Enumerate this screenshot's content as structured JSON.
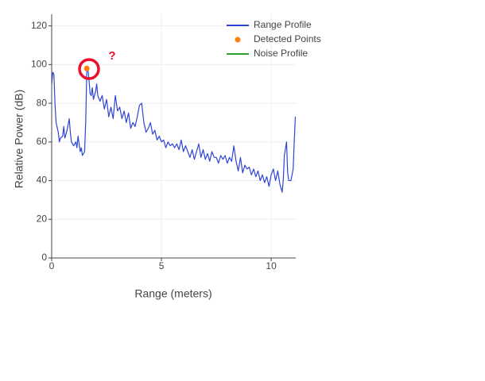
{
  "chart_data": {
    "type": "line",
    "x_label": "Range (meters)",
    "y_label": "Relative Power (dB)",
    "annotation": "?",
    "xlim": [
      0,
      11.12
    ],
    "ylim": [
      0,
      126
    ],
    "xticks": [
      0,
      5,
      10
    ],
    "yticks": [
      0,
      20,
      40,
      60,
      80,
      100,
      120
    ],
    "grid": true,
    "series": [
      {
        "name": "Range Profile",
        "color": "#2f45d6",
        "mode": "line",
        "x": [
          0,
          0.05,
          0.1,
          0.15,
          0.2,
          0.3,
          0.35,
          0.4,
          0.5,
          0.55,
          0.6,
          0.7,
          0.8,
          0.85,
          0.9,
          1.0,
          1.1,
          1.15,
          1.2,
          1.3,
          1.35,
          1.4,
          1.5,
          1.55,
          1.6,
          1.65,
          1.7,
          1.75,
          1.8,
          1.85,
          1.9,
          2.0,
          2.05,
          2.1,
          2.2,
          2.3,
          2.4,
          2.5,
          2.6,
          2.7,
          2.8,
          2.9,
          3.0,
          3.1,
          3.2,
          3.3,
          3.4,
          3.5,
          3.6,
          3.7,
          3.8,
          3.9,
          4.0,
          4.1,
          4.2,
          4.3,
          4.4,
          4.5,
          4.6,
          4.7,
          4.8,
          4.9,
          5.0,
          5.1,
          5.2,
          5.3,
          5.4,
          5.5,
          5.6,
          5.7,
          5.8,
          5.9,
          6.0,
          6.1,
          6.2,
          6.3,
          6.4,
          6.5,
          6.6,
          6.7,
          6.8,
          6.9,
          7.0,
          7.1,
          7.2,
          7.3,
          7.4,
          7.5,
          7.6,
          7.7,
          7.8,
          7.9,
          8.0,
          8.1,
          8.2,
          8.3,
          8.4,
          8.5,
          8.6,
          8.7,
          8.8,
          8.9,
          9.0,
          9.1,
          9.2,
          9.3,
          9.4,
          9.5,
          9.6,
          9.7,
          9.8,
          9.9,
          10.0,
          10.1,
          10.2,
          10.3,
          10.4,
          10.5,
          10.55,
          10.6,
          10.7,
          10.75,
          10.8,
          10.9,
          11.0,
          11.05,
          11.1
        ],
        "values": [
          90,
          96,
          95,
          80,
          70,
          65,
          60,
          62,
          63,
          68,
          62,
          66,
          72,
          65,
          60,
          58,
          60,
          57,
          63,
          55,
          57,
          53,
          55,
          70,
          97,
          98,
          92,
          85,
          84,
          88,
          82,
          86,
          90,
          84,
          81,
          84,
          77,
          82,
          73,
          78,
          72,
          84,
          76,
          78,
          72,
          76,
          70,
          75,
          67,
          70,
          68,
          73,
          79,
          80,
          70,
          65,
          67,
          70,
          64,
          66,
          61,
          63,
          60,
          61,
          57,
          60,
          58,
          59,
          57,
          59,
          56,
          61,
          55,
          58,
          55,
          52,
          56,
          51,
          55,
          59,
          52,
          56,
          51,
          54,
          50,
          55,
          52,
          52,
          49,
          53,
          51,
          53,
          49,
          52,
          50,
          58,
          50,
          45,
          52,
          44,
          48,
          46,
          47,
          43,
          46,
          42,
          45,
          40,
          43,
          39,
          42,
          37,
          43,
          46,
          40,
          45,
          38,
          34,
          40,
          53,
          60,
          44,
          40,
          40,
          46,
          60,
          73
        ]
      },
      {
        "name": "Detected Points",
        "color": "#ff7f0e",
        "mode": "markers",
        "x": [
          1.6
        ],
        "values": [
          98
        ]
      },
      {
        "name": "Noise Profile",
        "color": "#2ca02c",
        "mode": "line",
        "x": [],
        "values": []
      }
    ]
  }
}
